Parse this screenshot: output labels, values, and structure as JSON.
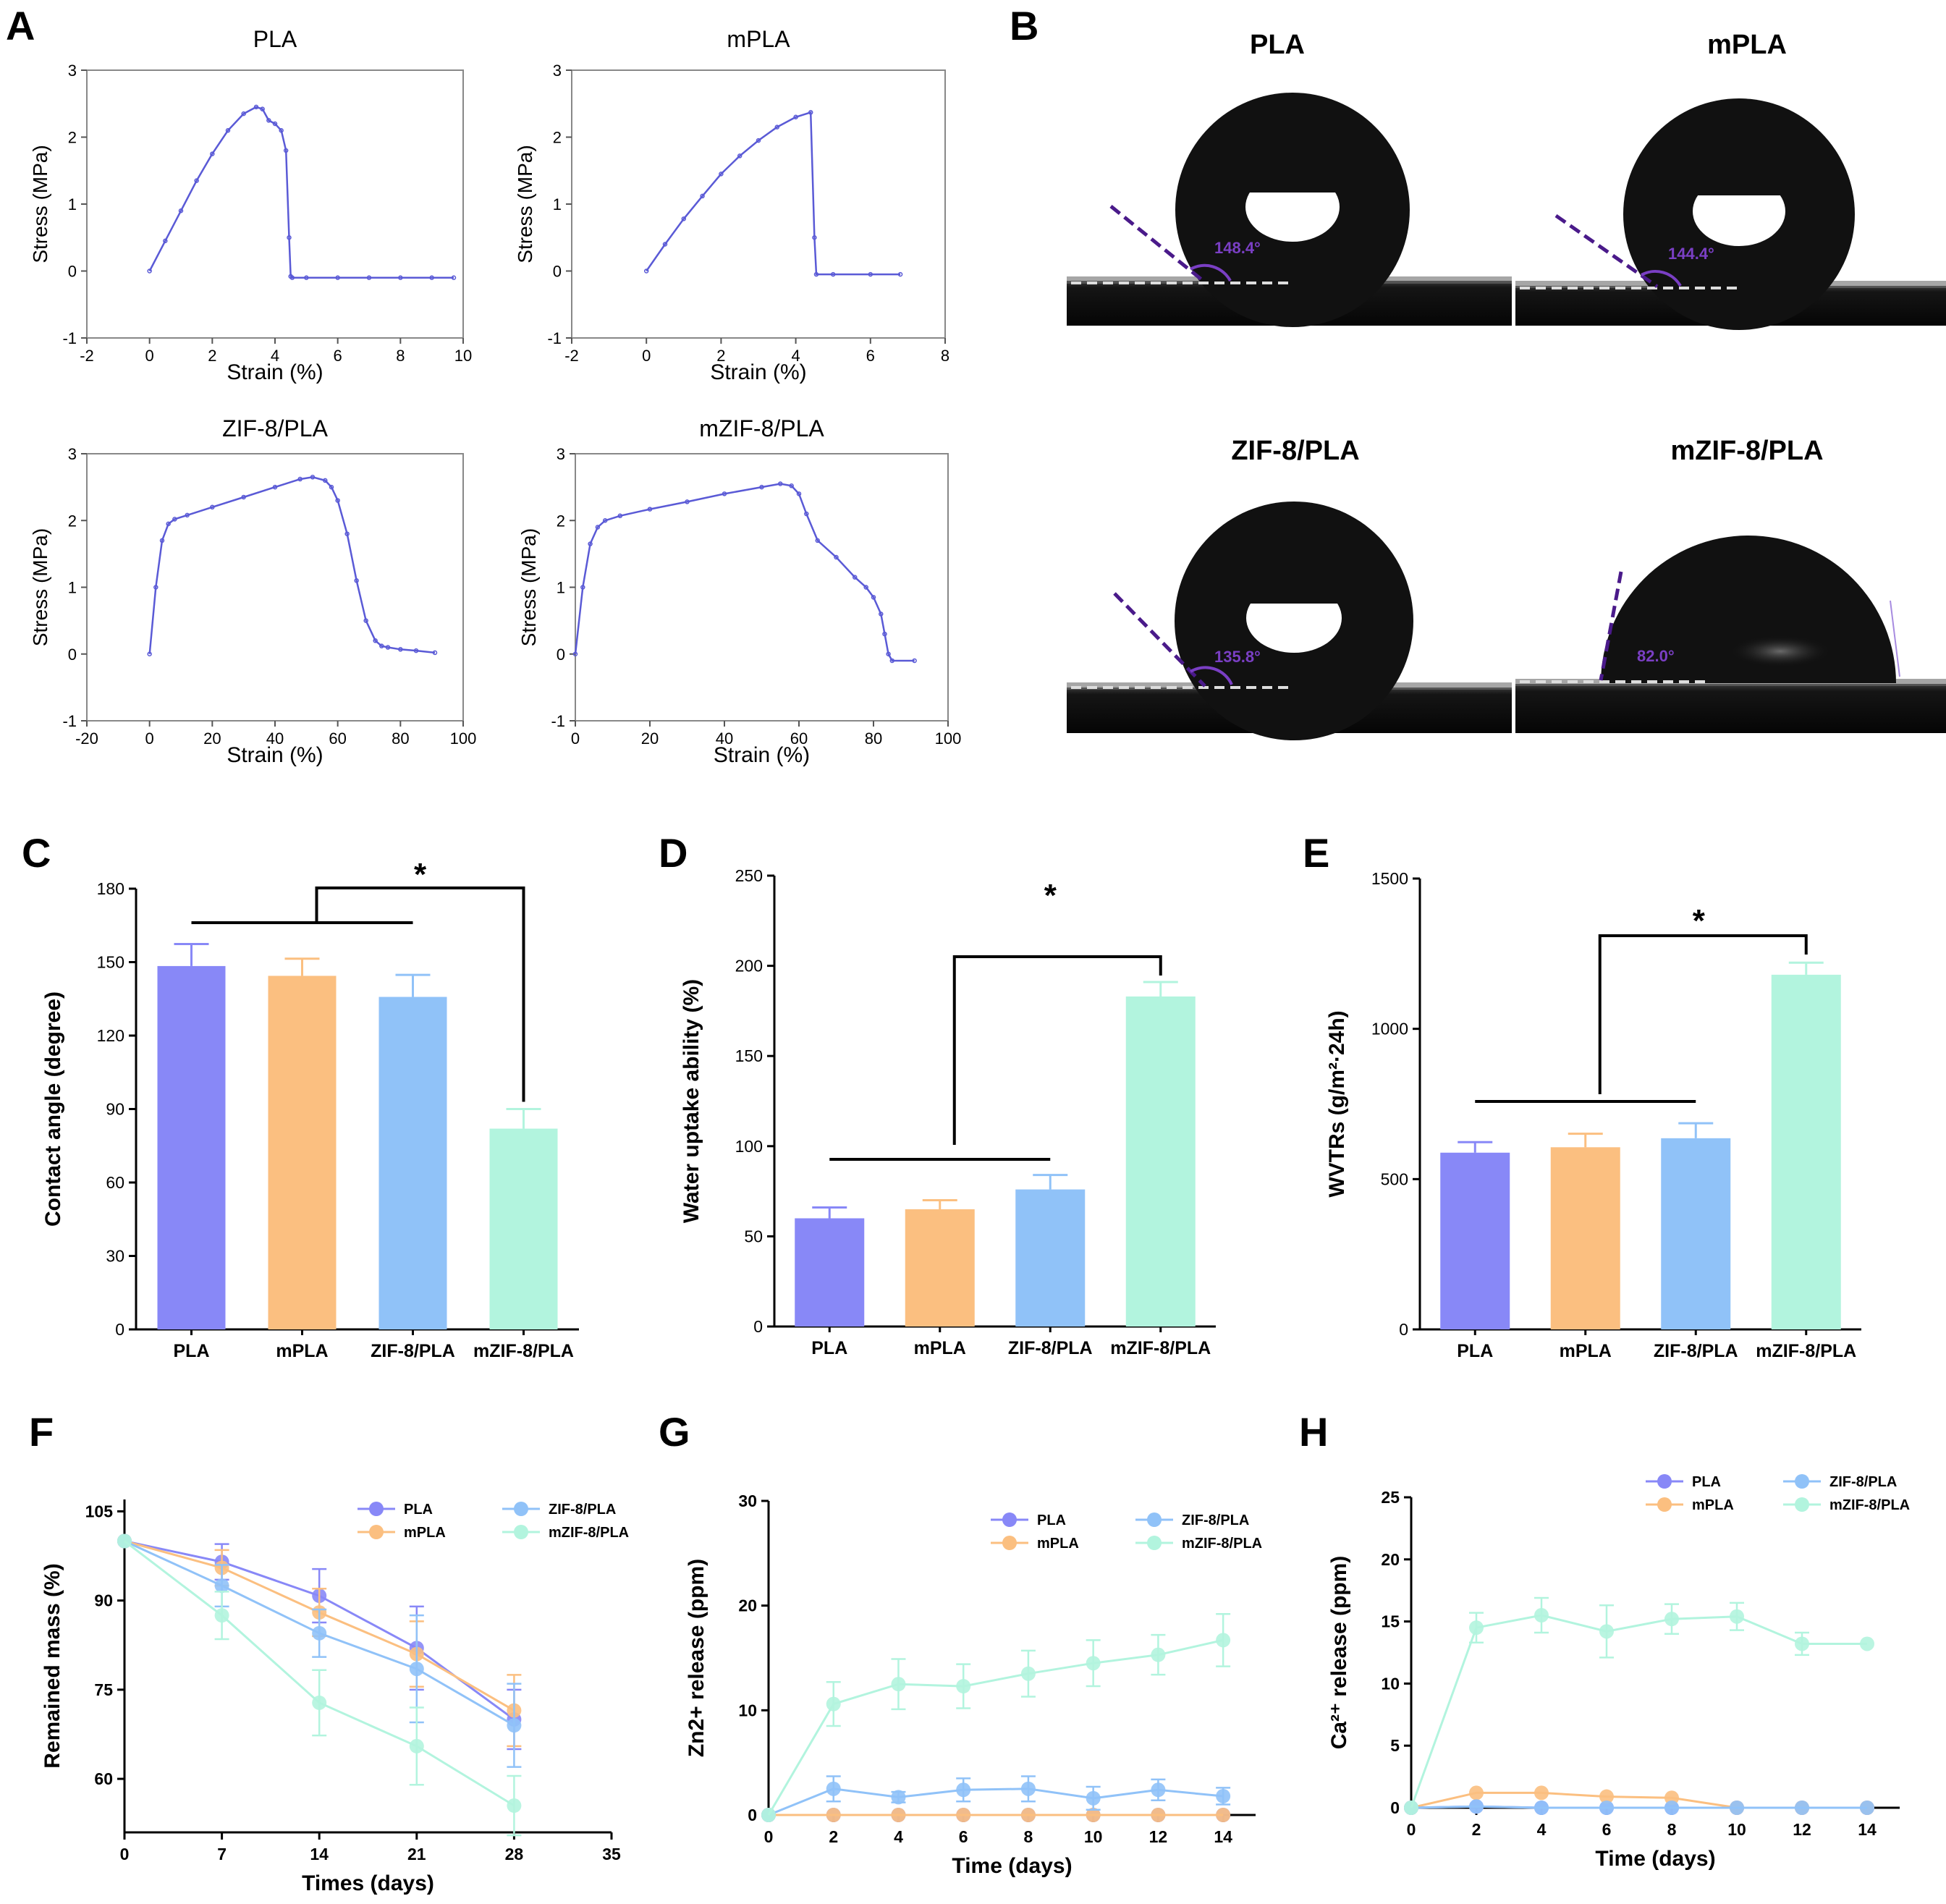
{
  "figure": {
    "panel_letters": [
      "A",
      "B",
      "C",
      "D",
      "E",
      "F",
      "G",
      "H"
    ]
  },
  "colors": {
    "PLA": "#8888f7",
    "mPLA": "#fbbf80",
    "ZIF8PLA": "#90c2f8",
    "mZIF8PLA": "#b2f4de",
    "curve": "#5a5ad6",
    "angle_purple": "#7a3fc4"
  },
  "contact_images": {
    "titles": [
      "PLA",
      "mPLA",
      "ZIF-8/PLA",
      "mZIF-8/PLA"
    ],
    "angles": [
      "148.4°",
      "144.4°",
      "135.8°",
      "82.0°"
    ]
  },
  "chart_data": [
    {
      "id": "A1",
      "type": "line",
      "title": "PLA",
      "xlabel": "Strain (%)",
      "ylabel": "Stress (MPa)",
      "xlim": [
        -2,
        10
      ],
      "ylim": [
        -1,
        3
      ],
      "xticks": [
        -2,
        0,
        2,
        4,
        6,
        8,
        10
      ],
      "yticks": [
        -1,
        0,
        1,
        2,
        3
      ],
      "x": [
        0,
        0.5,
        1,
        1.5,
        2,
        2.5,
        3,
        3.4,
        3.6,
        3.8,
        4.0,
        4.2,
        4.35,
        4.45,
        4.5,
        4.55,
        5,
        6,
        7,
        8,
        9,
        9.7
      ],
      "y": [
        0,
        0.45,
        0.9,
        1.35,
        1.75,
        2.1,
        2.35,
        2.45,
        2.42,
        2.25,
        2.2,
        2.1,
        1.8,
        0.5,
        -0.08,
        -0.1,
        -0.1,
        -0.1,
        -0.1,
        -0.1,
        -0.1,
        -0.1
      ]
    },
    {
      "id": "A2",
      "type": "line",
      "title": "mPLA",
      "xlabel": "Strain (%)",
      "ylabel": "Stress (MPa)",
      "xlim": [
        -2,
        8
      ],
      "ylim": [
        -1,
        3
      ],
      "xticks": [
        -2,
        0,
        2,
        4,
        6,
        8
      ],
      "yticks": [
        -1,
        0,
        1,
        2,
        3
      ],
      "x": [
        0,
        0.5,
        1,
        1.5,
        2,
        2.5,
        3,
        3.5,
        4,
        4.4,
        4.5,
        4.55,
        5,
        6,
        6.8
      ],
      "y": [
        0,
        0.4,
        0.78,
        1.12,
        1.45,
        1.72,
        1.95,
        2.15,
        2.3,
        2.37,
        0.5,
        -0.05,
        -0.05,
        -0.05,
        -0.05
      ]
    },
    {
      "id": "A3",
      "type": "line",
      "title": "ZIF-8/PLA",
      "xlabel": "Strain (%)",
      "ylabel": "Stress (MPa)",
      "xlim": [
        -20,
        100
      ],
      "ylim": [
        -1,
        3
      ],
      "xticks": [
        -20,
        0,
        20,
        40,
        60,
        80,
        100
      ],
      "yticks": [
        -1,
        0,
        1,
        2,
        3
      ],
      "x": [
        0,
        2,
        4,
        6,
        8,
        12,
        20,
        30,
        40,
        48,
        52,
        56,
        58,
        60,
        63,
        66,
        69,
        72,
        74,
        76,
        80,
        85,
        91
      ],
      "y": [
        0,
        1.0,
        1.7,
        1.95,
        2.02,
        2.08,
        2.2,
        2.35,
        2.5,
        2.62,
        2.65,
        2.6,
        2.5,
        2.3,
        1.8,
        1.1,
        0.5,
        0.2,
        0.12,
        0.1,
        0.07,
        0.05,
        0.02
      ]
    },
    {
      "id": "A4",
      "type": "line",
      "title": "mZIF-8/PLA",
      "xlabel": "Strain (%)",
      "ylabel": "Stress (MPa)",
      "xlim": [
        0,
        100
      ],
      "ylim": [
        -1,
        3
      ],
      "xticks": [
        0,
        20,
        40,
        60,
        80,
        100
      ],
      "yticks": [
        -1,
        0,
        1,
        2,
        3
      ],
      "x": [
        0,
        2,
        4,
        6,
        8,
        12,
        20,
        30,
        40,
        50,
        55,
        58,
        60,
        62,
        65,
        70,
        75,
        78,
        80,
        82,
        83,
        84,
        85,
        91
      ],
      "y": [
        0,
        1.0,
        1.65,
        1.9,
        2.0,
        2.07,
        2.17,
        2.28,
        2.4,
        2.5,
        2.55,
        2.52,
        2.4,
        2.1,
        1.7,
        1.45,
        1.15,
        1.0,
        0.85,
        0.6,
        0.3,
        0.0,
        -0.1,
        -0.1
      ]
    },
    {
      "id": "C",
      "type": "bar",
      "ylabel": "Contact angle (degree)",
      "categories": [
        "PLA",
        "mPLA",
        "ZIF-8/PLA",
        "mZIF-8/PLA"
      ],
      "values": [
        148.4,
        144.4,
        135.8,
        82.0
      ],
      "errors": [
        9,
        7,
        9,
        8
      ],
      "ylim": [
        0,
        180
      ],
      "yticks": [
        0,
        30,
        60,
        90,
        120,
        150,
        180
      ],
      "significance": "*"
    },
    {
      "id": "D",
      "type": "bar",
      "ylabel": "Water uptake ability (%)",
      "categories": [
        "PLA",
        "mPLA",
        "ZIF-8/PLA",
        "mZIF-8/PLA"
      ],
      "values": [
        60,
        65,
        76,
        183
      ],
      "errors": [
        6,
        5,
        8,
        8
      ],
      "ylim": [
        0,
        250
      ],
      "yticks": [
        0,
        50,
        100,
        150,
        200,
        250
      ],
      "significance": "*"
    },
    {
      "id": "E",
      "type": "bar",
      "ylabel": "WVTRs (g/m²·24h)",
      "categories": [
        "PLA",
        "mPLA",
        "ZIF-8/PLA",
        "mZIF-8/PLA"
      ],
      "values": [
        588,
        606,
        636,
        1180
      ],
      "errors": [
        35,
        45,
        50,
        40
      ],
      "ylim": [
        0,
        1500
      ],
      "yticks": [
        0,
        500,
        1000,
        1500
      ],
      "significance": "*"
    },
    {
      "id": "F",
      "type": "line",
      "xlabel": "Times (days)",
      "ylabel": "Remained mass (%)",
      "xlim": [
        0,
        35
      ],
      "ylim": [
        51,
        107
      ],
      "xticks": [
        0,
        7,
        14,
        21,
        28,
        35
      ],
      "yticks": [
        60,
        75,
        90,
        105
      ],
      "x": [
        0,
        7,
        14,
        21,
        28
      ],
      "series": [
        {
          "name": "PLA",
          "values": [
            100,
            96.5,
            90.8,
            82,
            70
          ],
          "errors": [
            0,
            3,
            4.5,
            7,
            5
          ]
        },
        {
          "name": "mPLA",
          "values": [
            100,
            95.5,
            88,
            81,
            71.5
          ],
          "errors": [
            0,
            3,
            4,
            5.5,
            6
          ]
        },
        {
          "name": "ZIF-8/PLA",
          "values": [
            100,
            92.5,
            84.5,
            78.5,
            69
          ],
          "errors": [
            0,
            3.5,
            4,
            9,
            7
          ]
        },
        {
          "name": "mZIF-8/PLA",
          "values": [
            100,
            87.5,
            72.8,
            65.5,
            55.5
          ],
          "errors": [
            0,
            4,
            5.5,
            6.5,
            5
          ]
        }
      ],
      "legend": [
        "PLA",
        "ZIF-8/PLA",
        "mPLA",
        "mZIF-8/PLA"
      ]
    },
    {
      "id": "G",
      "type": "line",
      "xlabel": "Time (days)",
      "ylabel": "Zn2+ release (ppm)",
      "xlim": [
        0,
        15
      ],
      "ylim": [
        0,
        30
      ],
      "xticks": [
        0,
        2,
        4,
        6,
        8,
        10,
        12,
        14
      ],
      "yticks": [
        0,
        10,
        20,
        30
      ],
      "x": [
        0,
        2,
        4,
        6,
        8,
        10,
        12,
        14
      ],
      "series": [
        {
          "name": "PLA",
          "values": [
            0,
            0,
            0,
            0,
            0,
            0,
            0,
            0
          ],
          "errors": [
            0,
            0,
            0,
            0,
            0,
            0,
            0,
            0
          ]
        },
        {
          "name": "mPLA",
          "values": [
            0,
            0,
            0,
            0,
            0,
            0,
            0,
            0
          ],
          "errors": [
            0,
            0,
            0,
            0,
            0,
            0,
            0,
            0
          ]
        },
        {
          "name": "ZIF-8/PLA",
          "values": [
            0,
            2.5,
            1.7,
            2.4,
            2.5,
            1.6,
            2.4,
            1.8
          ],
          "errors": [
            0,
            1.2,
            0.5,
            1.1,
            1.2,
            1.1,
            1.0,
            0.8
          ]
        },
        {
          "name": "mZIF-8/PLA",
          "values": [
            0,
            10.6,
            12.5,
            12.3,
            13.5,
            14.5,
            15.3,
            16.7
          ],
          "errors": [
            0,
            2.1,
            2.4,
            2.1,
            2.2,
            2.2,
            1.9,
            2.5
          ]
        }
      ],
      "legend": [
        "PLA",
        "ZIF-8/PLA",
        "mPLA",
        "mZIF-8/PLA"
      ]
    },
    {
      "id": "H",
      "type": "line",
      "xlabel": "Time (days)",
      "ylabel": "Ca²⁺ release (ppm)",
      "xlim": [
        0,
        15
      ],
      "ylim": [
        0,
        25
      ],
      "xticks": [
        0,
        2,
        4,
        6,
        8,
        10,
        12,
        14
      ],
      "yticks": [
        0,
        5,
        10,
        15,
        20,
        25
      ],
      "x": [
        0,
        2,
        4,
        6,
        8,
        10,
        12,
        14
      ],
      "series": [
        {
          "name": "PLA",
          "values": [
            0,
            0.1,
            0,
            0,
            0,
            0,
            0,
            0
          ],
          "errors": [
            0,
            0,
            0,
            0,
            0,
            0,
            0,
            0
          ]
        },
        {
          "name": "mPLA",
          "values": [
            0,
            1.2,
            1.2,
            0.9,
            0.8,
            0,
            0,
            0
          ],
          "errors": [
            0,
            0,
            0,
            0,
            0,
            0,
            0,
            0
          ]
        },
        {
          "name": "ZIF-8/PLA",
          "values": [
            0,
            0.1,
            0,
            0,
            0,
            0,
            0,
            0
          ],
          "errors": [
            0,
            0,
            0,
            0,
            0,
            0,
            0,
            0
          ]
        },
        {
          "name": "mZIF-8/PLA",
          "values": [
            0,
            14.5,
            15.5,
            14.2,
            15.2,
            15.4,
            13.2,
            13.2
          ],
          "errors": [
            0,
            1.2,
            1.4,
            2.1,
            1.2,
            1.1,
            0.9,
            0
          ]
        }
      ],
      "legend": [
        "PLA",
        "ZIF-8/PLA",
        "mPLA",
        "mZIF-8/PLA"
      ]
    }
  ]
}
